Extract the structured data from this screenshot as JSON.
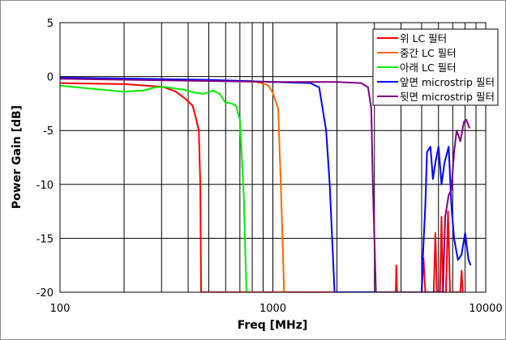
{
  "chart_data": {
    "type": "line",
    "title": "",
    "xlabel": "Freq [MHz]",
    "ylabel": "Power Gain [dB]",
    "xscale": "log",
    "xlim": [
      100,
      10000
    ],
    "ylim": [
      -20,
      5
    ],
    "xticks": [
      100,
      1000,
      10000
    ],
    "xtick_labels": [
      "100",
      "1000",
      "10000"
    ],
    "yticks": [
      5,
      0,
      -5,
      -10,
      -15,
      -20
    ],
    "ytick_labels": [
      "5",
      "0",
      "-5",
      "-10",
      "-15",
      "-20"
    ],
    "grid": true,
    "legend_position": "top-right",
    "series": [
      {
        "name": "위 LC 필터",
        "color": "#ff0000",
        "points": [
          [
            100,
            -0.6
          ],
          [
            200,
            -0.7
          ],
          [
            305,
            -0.95
          ],
          [
            350,
            -1.4
          ],
          [
            390,
            -2.1
          ],
          [
            420,
            -2.7
          ],
          [
            433,
            -3.7
          ],
          [
            449,
            -5
          ],
          [
            456,
            -10
          ],
          [
            460,
            -20
          ],
          [
            3780,
            -20
          ],
          [
            3800,
            -17.5
          ],
          [
            3830,
            -20
          ],
          [
            5000,
            -20
          ],
          [
            5100,
            -16.8
          ],
          [
            5200,
            -20
          ],
          [
            5700,
            -20
          ],
          [
            5800,
            -14.5
          ],
          [
            5900,
            -20
          ],
          [
            6100,
            -20
          ],
          [
            6200,
            -13
          ],
          [
            6300,
            -20
          ],
          [
            6500,
            -20
          ],
          [
            6650,
            -12.5
          ],
          [
            6800,
            -20
          ],
          [
            7600,
            -20
          ],
          [
            7700,
            -18
          ],
          [
            7800,
            -20
          ]
        ]
      },
      {
        "name": "중간 LC 필터",
        "color": "#ff6600",
        "points": [
          [
            100,
            -0.2
          ],
          [
            300,
            -0.3
          ],
          [
            500,
            -0.4
          ],
          [
            800,
            -0.4
          ],
          [
            950,
            -0.8
          ],
          [
            1000,
            -1.5
          ],
          [
            1060,
            -3
          ],
          [
            1090,
            -10
          ],
          [
            1130,
            -20
          ]
        ]
      },
      {
        "name": "아래 LC 필터",
        "color": "#00ee00",
        "points": [
          [
            100,
            -0.85
          ],
          [
            165,
            -1.25
          ],
          [
            197,
            -1.4
          ],
          [
            245,
            -1.3
          ],
          [
            279,
            -1.0
          ],
          [
            305,
            -0.95
          ],
          [
            379,
            -1.2
          ],
          [
            433,
            -1.5
          ],
          [
            472,
            -1.6
          ],
          [
            525,
            -1.3
          ],
          [
            563,
            -1.6
          ],
          [
            598,
            -2.4
          ],
          [
            641,
            -2.5
          ],
          [
            671,
            -2.7
          ],
          [
            700,
            -4
          ],
          [
            730,
            -11
          ],
          [
            751,
            -20
          ]
        ]
      },
      {
        "name": "앞면 microstrip 필터",
        "color": "#0000ff",
        "points": [
          [
            100,
            -0.1
          ],
          [
            500,
            -0.3
          ],
          [
            1000,
            -0.5
          ],
          [
            1500,
            -0.6
          ],
          [
            1650,
            -1
          ],
          [
            1780,
            -5
          ],
          [
            1850,
            -10
          ],
          [
            1950,
            -20
          ],
          [
            5000,
            -20
          ],
          [
            5060,
            -17
          ],
          [
            5200,
            -12
          ],
          [
            5300,
            -7
          ],
          [
            5500,
            -6.5
          ],
          [
            5650,
            -9.5
          ],
          [
            5800,
            -8
          ],
          [
            6000,
            -6.5
          ],
          [
            6200,
            -10
          ],
          [
            6400,
            -8
          ],
          [
            6700,
            -6.5
          ],
          [
            6900,
            -12
          ],
          [
            7100,
            -15
          ],
          [
            7400,
            -17
          ],
          [
            7700,
            -16.5
          ],
          [
            8000,
            -14.5
          ],
          [
            8300,
            -17
          ],
          [
            8500,
            -17.5
          ]
        ]
      },
      {
        "name": "뒷면 microstrip 필터",
        "color": "#800080",
        "points": [
          [
            100,
            -0.2
          ],
          [
            1000,
            -0.5
          ],
          [
            2000,
            -0.5
          ],
          [
            2600,
            -0.6
          ],
          [
            2800,
            -1
          ],
          [
            2900,
            -3
          ],
          [
            2950,
            -10
          ],
          [
            3050,
            -20
          ],
          [
            6300,
            -20
          ],
          [
            6450,
            -13
          ],
          [
            6700,
            -11
          ],
          [
            6900,
            -10.5
          ],
          [
            7100,
            -7
          ],
          [
            7300,
            -5
          ],
          [
            7600,
            -6
          ],
          [
            7900,
            -4.2
          ],
          [
            8100,
            -4
          ],
          [
            8400,
            -4.8
          ]
        ]
      }
    ]
  }
}
